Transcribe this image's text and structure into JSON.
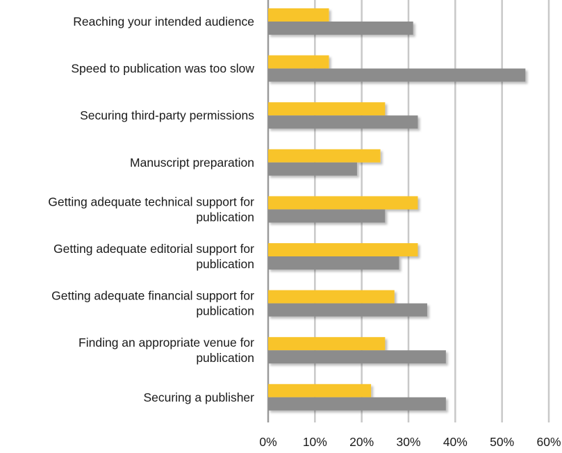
{
  "chart_data": {
    "type": "bar",
    "orientation": "horizontal",
    "categories": [
      [
        "Reaching your intended audience"
      ],
      [
        "Speed to publication was too slow"
      ],
      [
        "Securing third-party permissions"
      ],
      [
        "Manuscript preparation"
      ],
      [
        "Getting adequate technical support for",
        "publication"
      ],
      [
        "Getting adequate editorial support for",
        "publication"
      ],
      [
        "Getting adequate financial support for",
        "publication"
      ],
      [
        "Finding an appropriate venue for",
        "publication"
      ],
      [
        "Securing a publisher"
      ]
    ],
    "series": [
      {
        "color": "#f8c42a",
        "values": [
          13,
          13,
          25,
          24,
          32,
          32,
          27,
          25,
          22
        ]
      },
      {
        "color": "#8c8c8c",
        "values": [
          31,
          55,
          32,
          19,
          25,
          28,
          34,
          38,
          38
        ]
      }
    ],
    "xlim": [
      0,
      60
    ],
    "xticks": [
      "0%",
      "10%",
      "20%",
      "30%",
      "40%",
      "50%",
      "60%"
    ],
    "grid": true,
    "legend": "none"
  }
}
